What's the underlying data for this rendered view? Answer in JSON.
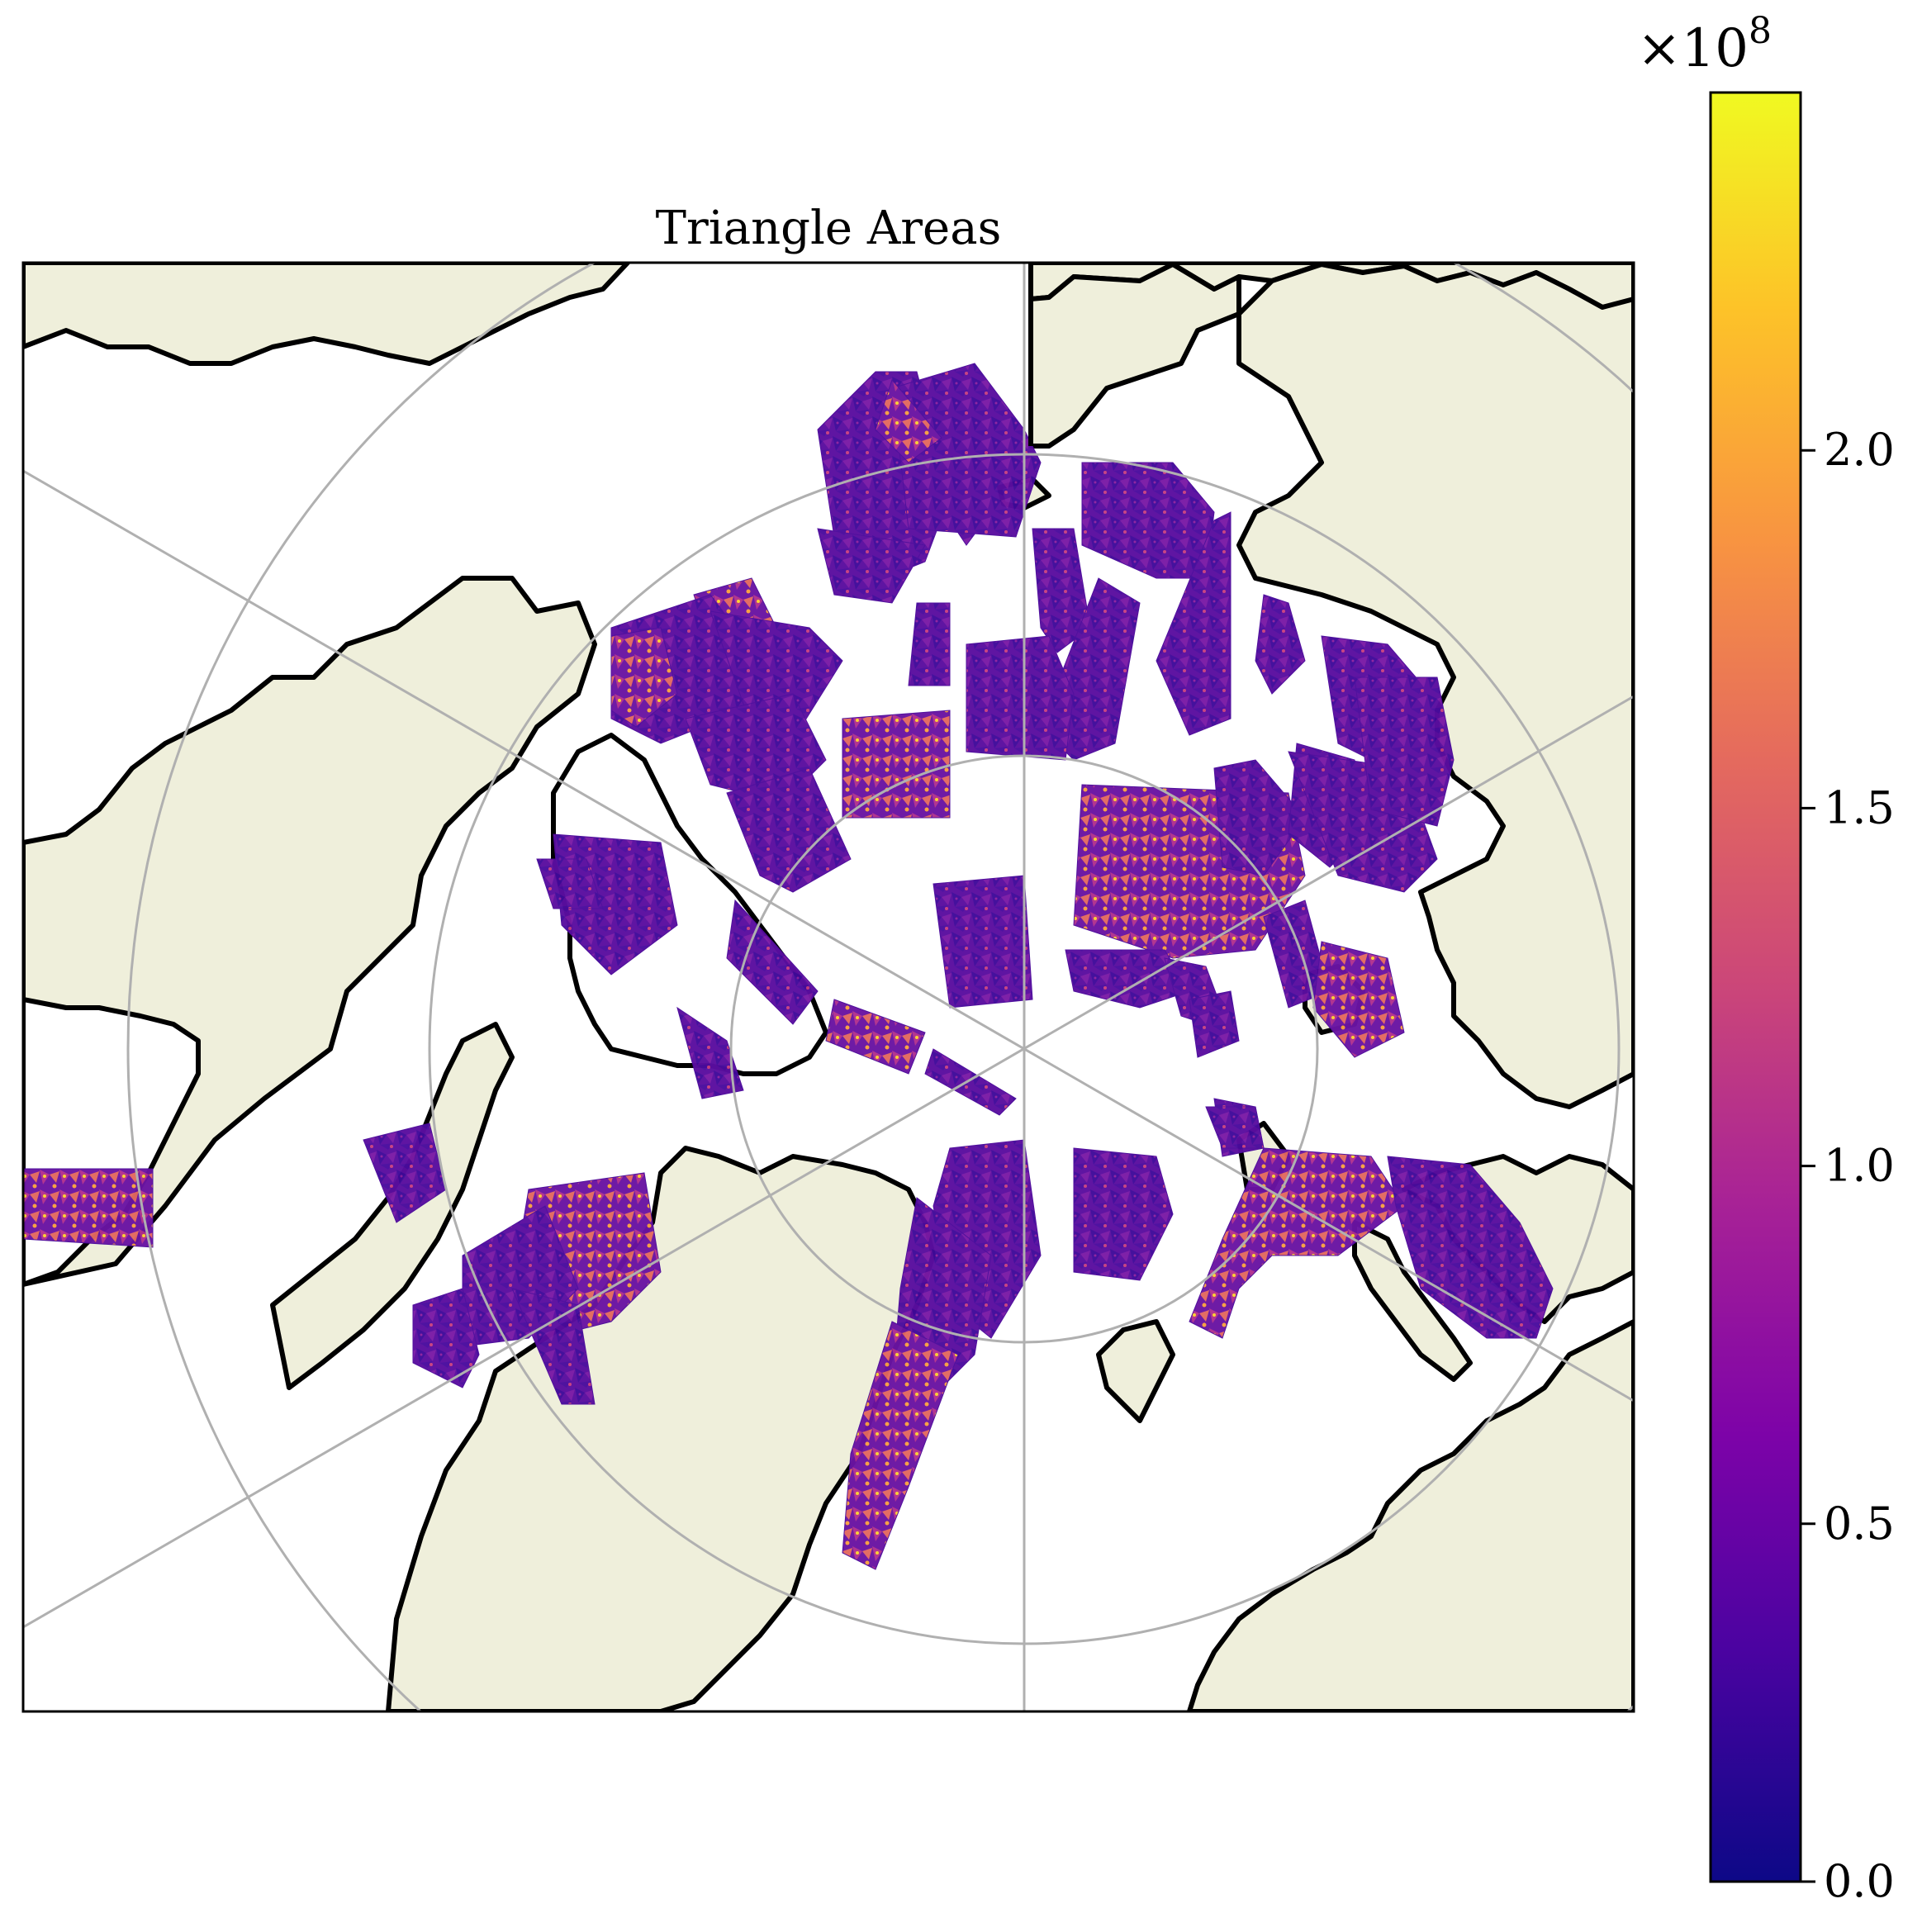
{
  "title": "Triangle Areas",
  "colorbar": {
    "colormap": "plasma",
    "multiplier_base": "×10",
    "multiplier_exp": "8",
    "ticks": [
      {
        "value": 0.0,
        "label": "0.0"
      },
      {
        "value": 0.5,
        "label": "0.5"
      },
      {
        "value": 1.0,
        "label": "1.0"
      },
      {
        "value": 1.5,
        "label": "1.5"
      },
      {
        "value": 2.0,
        "label": "2.0"
      }
    ],
    "range": [
      0.0,
      2.5
    ]
  },
  "map": {
    "projection": "north-polar-stereographic",
    "land_color": "#efefdb",
    "ocean_color": "#ffffff",
    "coastline_color": "#000000",
    "graticule_color": "#b0b0b0"
  }
}
